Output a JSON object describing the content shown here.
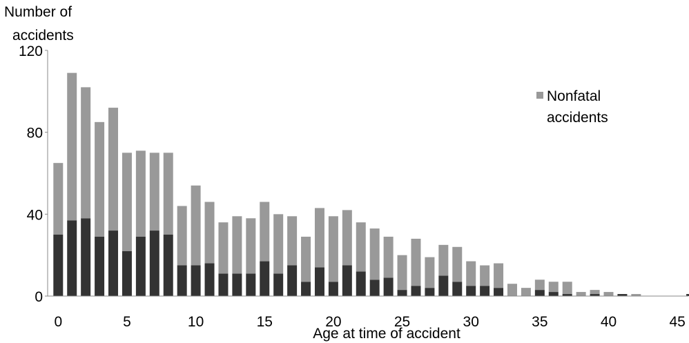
{
  "chart_data": {
    "type": "bar",
    "stacked": true,
    "ylabel_lines": [
      "Number of",
      "accidents"
    ],
    "xlabel": "Age at time of accident",
    "x_ticks": [
      0,
      5,
      10,
      15,
      20,
      25,
      30,
      35,
      40,
      45
    ],
    "y_ticks": [
      0,
      40,
      80,
      120
    ],
    "ylim": [
      0,
      120
    ],
    "x": [
      0,
      1,
      2,
      3,
      4,
      5,
      6,
      7,
      8,
      9,
      10,
      11,
      12,
      13,
      14,
      15,
      16,
      17,
      18,
      19,
      20,
      21,
      22,
      23,
      24,
      25,
      26,
      27,
      28,
      29,
      30,
      31,
      32,
      33,
      34,
      35,
      36,
      37,
      38,
      39,
      40,
      41,
      42,
      43,
      44,
      45,
      46
    ],
    "series": [
      {
        "values": [
          30,
          37,
          38,
          29,
          32,
          22,
          29,
          32,
          30,
          15,
          15,
          16,
          11,
          11,
          11,
          17,
          11,
          15,
          7,
          14,
          7,
          15,
          12,
          8,
          9,
          3,
          5,
          4,
          10,
          7,
          5,
          5,
          4,
          0,
          0,
          3,
          2,
          1,
          0,
          1,
          0,
          1,
          0,
          0,
          0,
          0,
          1
        ],
        "color": "#333333"
      },
      {
        "name": "Nonfatal accidents",
        "values": [
          35,
          72,
          64,
          56,
          60,
          48,
          42,
          38,
          40,
          29,
          39,
          30,
          25,
          28,
          27,
          29,
          29,
          24,
          22,
          29,
          32,
          27,
          24,
          25,
          20,
          17,
          23,
          15,
          15,
          17,
          12,
          10,
          12,
          6,
          4,
          5,
          5,
          6,
          2,
          2,
          2,
          0,
          1,
          0,
          0,
          0,
          0
        ],
        "color": "#999999"
      }
    ],
    "legend": {
      "position": "top-right",
      "label_lines": [
        "Nonfatal",
        "accidents"
      ]
    },
    "grid": false
  }
}
